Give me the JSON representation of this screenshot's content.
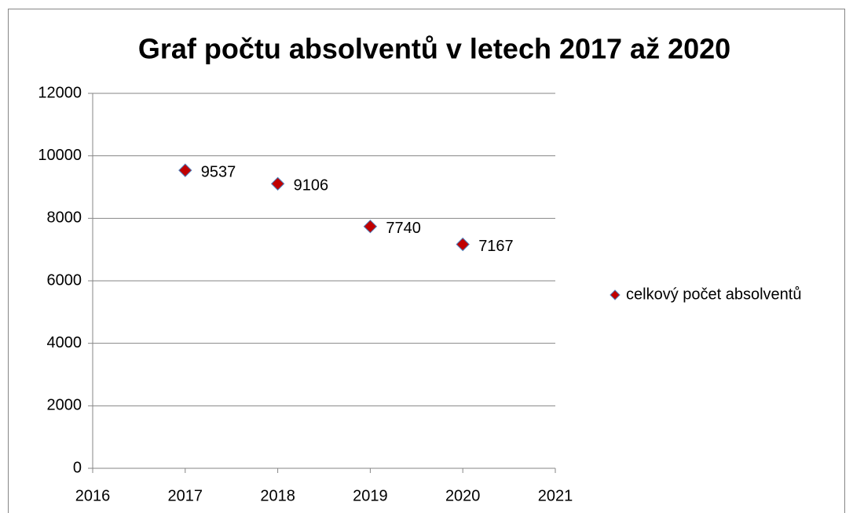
{
  "chart_data": {
    "type": "scatter",
    "title": "Graf počtu absolventů v letech 2017 až 2020",
    "x": [
      2017,
      2018,
      2019,
      2020
    ],
    "series": [
      {
        "name": "celkový počet absolventů",
        "color": "#c00000",
        "values": [
          9537,
          9106,
          7740,
          7167
        ]
      }
    ],
    "xlim": [
      2016,
      2021
    ],
    "xticks": [
      2016,
      2017,
      2018,
      2019,
      2020,
      2021
    ],
    "ylim": [
      0,
      12000
    ],
    "yticks": [
      0,
      2000,
      4000,
      6000,
      8000,
      10000,
      12000
    ],
    "grid": true,
    "legend": "right",
    "data_labels": true
  }
}
